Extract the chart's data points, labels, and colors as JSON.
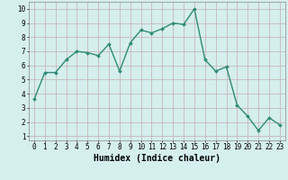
{
  "x": [
    0,
    1,
    2,
    3,
    4,
    5,
    6,
    7,
    8,
    9,
    10,
    11,
    12,
    13,
    14,
    15,
    16,
    17,
    18,
    19,
    20,
    21,
    22,
    23
  ],
  "y": [
    3.6,
    5.5,
    5.5,
    6.4,
    7.0,
    6.9,
    6.7,
    7.5,
    5.6,
    7.6,
    8.5,
    8.3,
    8.6,
    9.0,
    8.9,
    10.0,
    6.4,
    5.6,
    5.9,
    3.2,
    2.4,
    1.4,
    2.3,
    1.8
  ],
  "line_color": "#2e8b74",
  "marker": "D",
  "marker_size": 2.0,
  "bg_color": "#d5eeee",
  "grid_color": "#c8b8b8",
  "xlabel": "Humidex (Indice chaleur)",
  "xlim": [
    -0.5,
    23.5
  ],
  "ylim": [
    0.7,
    10.5
  ],
  "yticks": [
    1,
    2,
    3,
    4,
    5,
    6,
    7,
    8,
    9,
    10
  ],
  "xticks": [
    0,
    1,
    2,
    3,
    4,
    5,
    6,
    7,
    8,
    9,
    10,
    11,
    12,
    13,
    14,
    15,
    16,
    17,
    18,
    19,
    20,
    21,
    22,
    23
  ],
  "tick_fontsize": 5.5,
  "xlabel_fontsize": 7.0,
  "line_width": 1.0
}
